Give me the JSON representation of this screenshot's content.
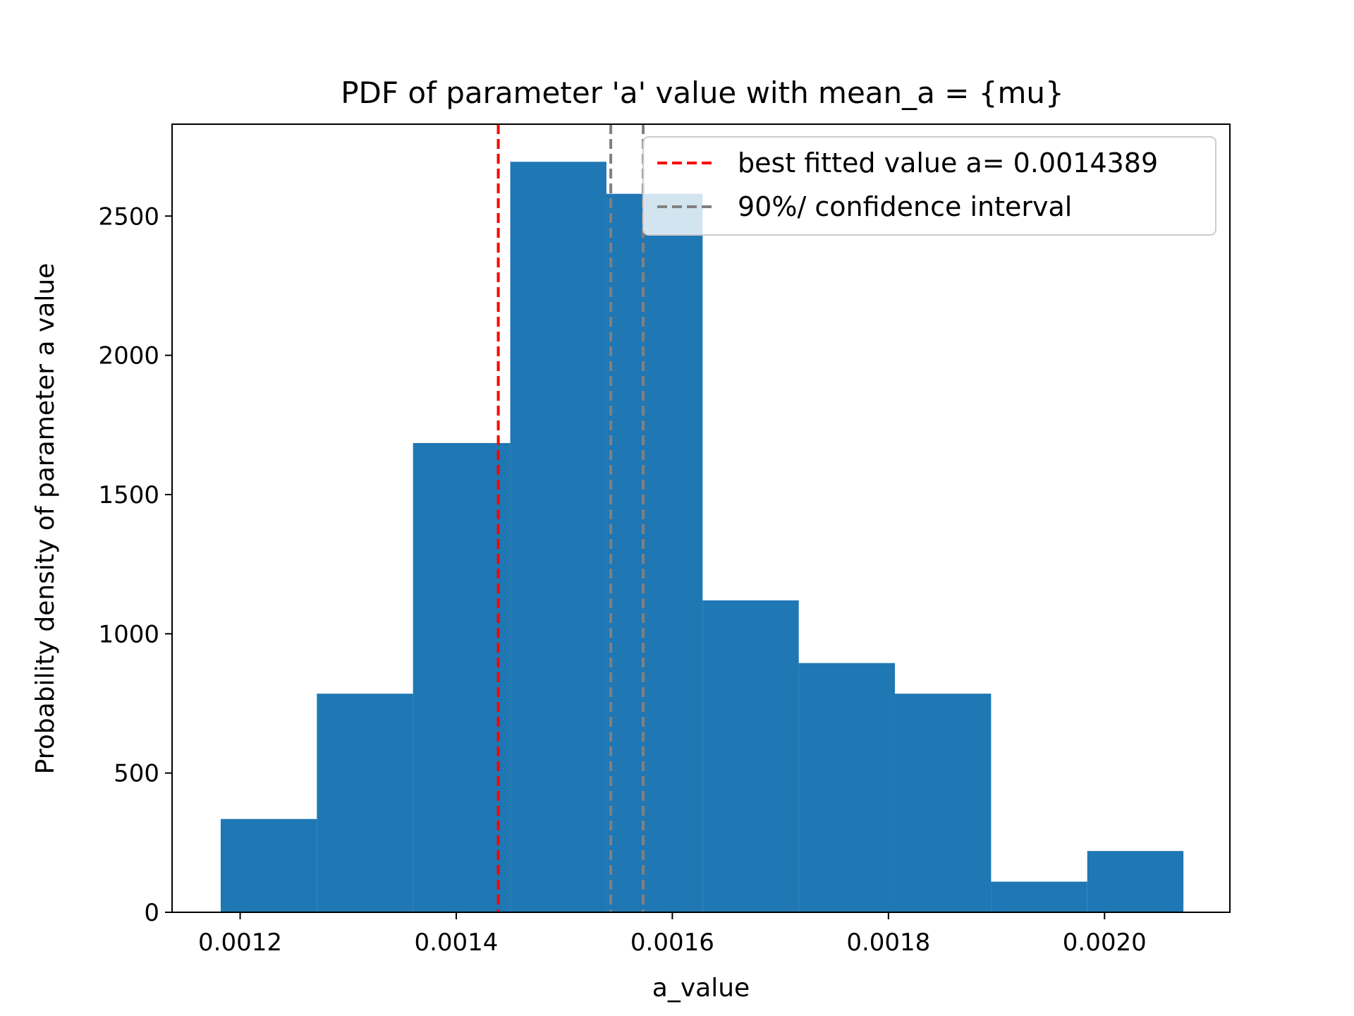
{
  "chart_data": {
    "type": "bar",
    "title": "PDF of parameter 'a' value with mean_a = {mu}",
    "xlabel": "a_value",
    "ylabel": "Probability density of parameter a value",
    "xlim": [
      0.001137,
      0.002116
    ],
    "ylim": [
      0,
      2830
    ],
    "xticks": [
      {
        "value": 0.0012,
        "label": "0.0012"
      },
      {
        "value": 0.0014,
        "label": "0.0014"
      },
      {
        "value": 0.0016,
        "label": "0.0016"
      },
      {
        "value": 0.0018,
        "label": "0.0018"
      },
      {
        "value": 0.002,
        "label": "0.0020"
      }
    ],
    "yticks": [
      {
        "value": 0,
        "label": "0"
      },
      {
        "value": 500,
        "label": "500"
      },
      {
        "value": 1000,
        "label": "1000"
      },
      {
        "value": 1500,
        "label": "1500"
      },
      {
        "value": 2000,
        "label": "2000"
      },
      {
        "value": 2500,
        "label": "2500"
      }
    ],
    "bin_edges": [
      0.001182,
      0.001271,
      0.00136,
      0.00145,
      0.001539,
      0.001628,
      0.001717,
      0.001806,
      0.001895,
      0.001984,
      0.002073
    ],
    "values": [
      335,
      785,
      1685,
      2695,
      2580,
      1120,
      895,
      785,
      110,
      220
    ],
    "bar_color": "#1f77b4",
    "vlines": [
      {
        "x": 0.0014389,
        "color": "#ff0000",
        "style": "dashed"
      },
      {
        "x": 0.001543,
        "color": "#808080",
        "style": "dashed"
      },
      {
        "x": 0.001573,
        "color": "#808080",
        "style": "dashed"
      }
    ],
    "legend": {
      "placement": "top-right",
      "entries": [
        {
          "label": "best fitted value a= 0.0014389",
          "color": "#ff0000"
        },
        {
          "label": "90%/ confidence interval",
          "color": "#808080"
        }
      ]
    },
    "grid": false
  }
}
